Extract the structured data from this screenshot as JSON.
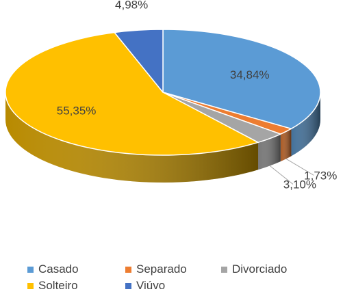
{
  "chart_data": {
    "type": "pie",
    "title": "",
    "style": "3d",
    "categories": [
      "Casado",
      "Separado",
      "Divorciado",
      "Solteiro",
      "Viúvo"
    ],
    "values": [
      34.84,
      1.73,
      3.1,
      55.35,
      4.98
    ],
    "labels": [
      "34,84%",
      "1,73%",
      "3,10%",
      "55,35%",
      "4,98%"
    ],
    "colors": [
      "#5B9BD5",
      "#ED7D31",
      "#A5A5A5",
      "#FFC000",
      "#4472C4"
    ],
    "legend": "bottom"
  }
}
